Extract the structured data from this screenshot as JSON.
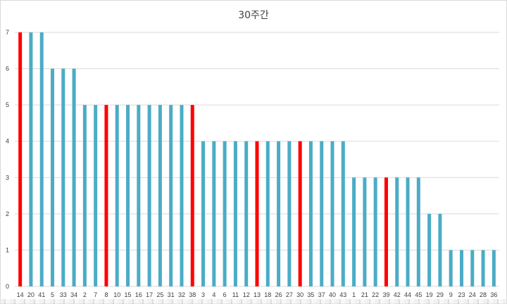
{
  "chart_data": {
    "type": "bar",
    "title": "30주간",
    "xlabel": "",
    "ylabel": "",
    "ylim": [
      0,
      7
    ],
    "yticks": [
      0,
      1,
      2,
      3,
      4,
      5,
      6,
      7
    ],
    "grid": true,
    "legend": "none",
    "categories": [
      "14",
      "20",
      "41",
      "5",
      "33",
      "34",
      "2",
      "7",
      "8",
      "10",
      "15",
      "16",
      "17",
      "25",
      "31",
      "32",
      "38",
      "3",
      "4",
      "6",
      "11",
      "12",
      "13",
      "18",
      "26",
      "27",
      "30",
      "35",
      "37",
      "40",
      "43",
      "1",
      "21",
      "22",
      "39",
      "42",
      "44",
      "45",
      "19",
      "29",
      "9",
      "23",
      "24",
      "28",
      "36"
    ],
    "values": [
      7,
      7,
      7,
      6,
      6,
      6,
      5,
      5,
      5,
      5,
      5,
      5,
      5,
      5,
      5,
      5,
      5,
      4,
      4,
      4,
      4,
      4,
      4,
      4,
      4,
      4,
      4,
      4,
      4,
      4,
      4,
      3,
      3,
      3,
      3,
      3,
      3,
      3,
      2,
      2,
      1,
      1,
      1,
      1,
      1
    ],
    "highlighted": [
      "14",
      "8",
      "38",
      "13",
      "30",
      "39"
    ],
    "colors": {
      "default": "#4bacc6",
      "highlight": "#ff0000",
      "grid": "#d9d9d9",
      "text": "#404040"
    }
  }
}
